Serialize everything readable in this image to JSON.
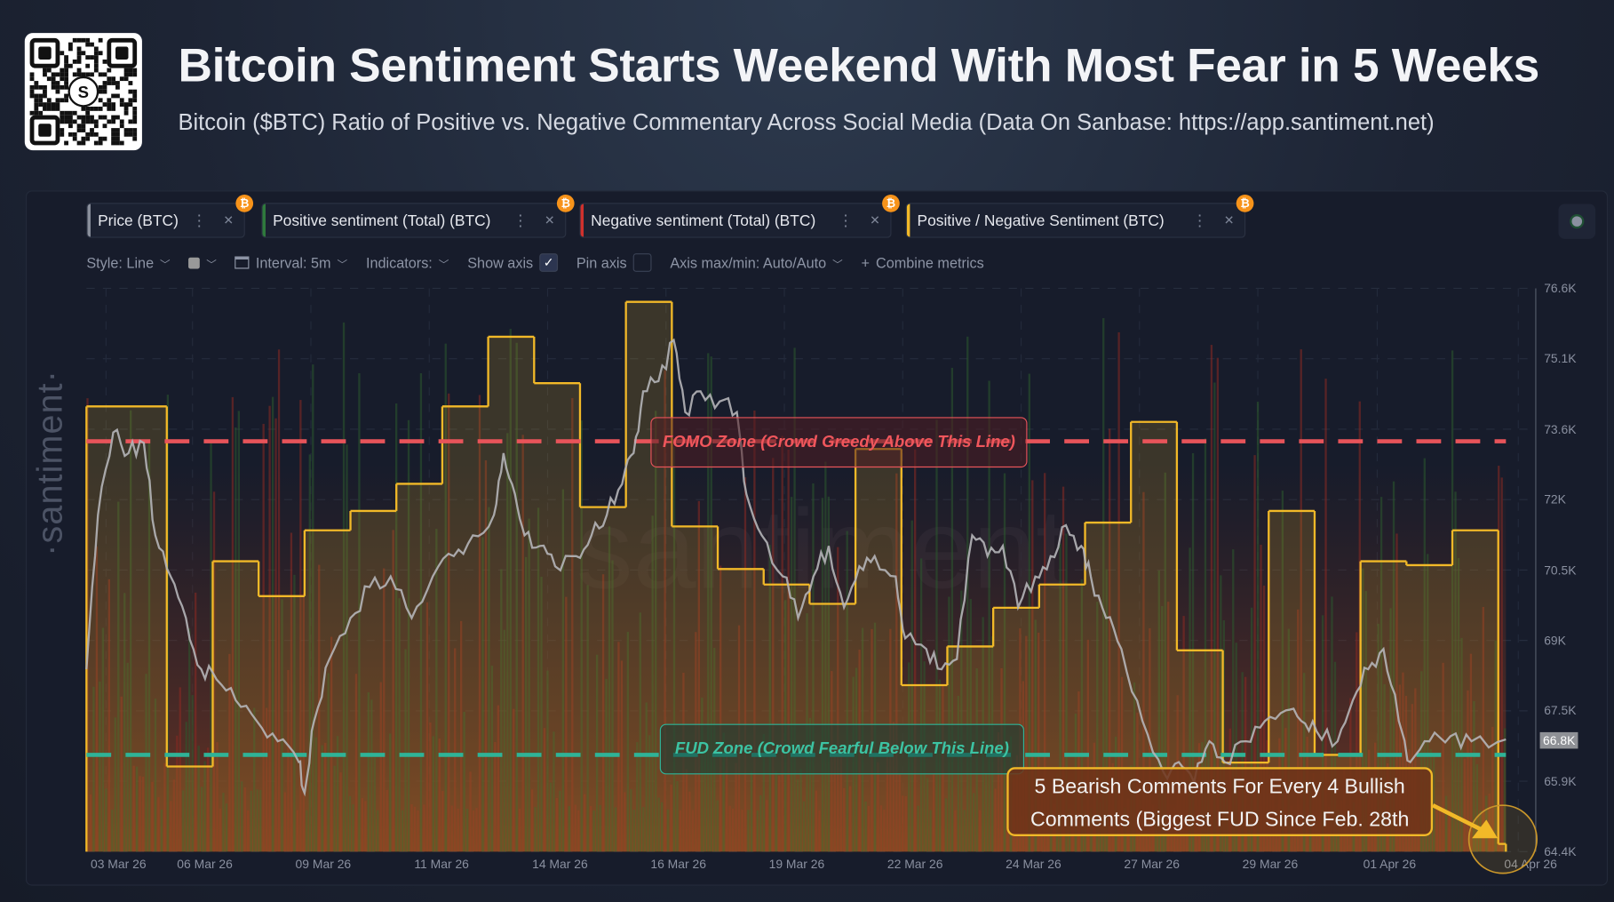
{
  "header": {
    "title": "Bitcoin Sentiment Starts Weekend With Most Fear in 5 Weeks",
    "subtitle": "Bitcoin ($BTC) Ratio of Positive vs. Negative Commentary Across Social Media (Data On Sanbase: https://app.santiment.net)",
    "qr_logo_text": "S"
  },
  "metric_tabs": [
    {
      "label": "Price (BTC)",
      "color": "#8a8f9c",
      "badge_icon": "bitcoin-icon"
    },
    {
      "label": "Positive sentiment (Total) (BTC)",
      "color": "#2f7a3d",
      "badge_icon": "bitcoin-icon"
    },
    {
      "label": "Negative sentiment (Total) (BTC)",
      "color": "#d0312d",
      "badge_icon": "bitcoin-icon"
    },
    {
      "label": "Positive / Negative Sentiment (BTC)",
      "color": "#f2b928",
      "badge_icon": "bitcoin-icon"
    }
  ],
  "toolbar": {
    "style": "Style: Line",
    "interval": "Interval: 5m",
    "indicators": "Indicators:",
    "show_axis": "Show axis",
    "show_axis_checked": true,
    "pin_axis": "Pin axis",
    "pin_axis_checked": false,
    "axis_minmax": "Axis max/min: Auto/Auto",
    "combine": "Combine metrics"
  },
  "watermark": {
    "left": "·santiment·",
    "center": "santiment"
  },
  "chart_data": {
    "type": "line",
    "y_axis": {
      "side": "right",
      "ticks": [
        "76.6K",
        "75.1K",
        "73.6K",
        "72K",
        "70.5K",
        "69K",
        "67.5K",
        "65.9K",
        "64.4K"
      ],
      "range": [
        64.4,
        76.6
      ],
      "last_value_label": "66.8K"
    },
    "x_axis": {
      "ticks": [
        "03 Mar 26",
        "06 Mar 26",
        "09 Mar 26",
        "11 Mar 26",
        "14 Mar 26",
        "16 Mar 26",
        "19 Mar 26",
        "22 Mar 26",
        "24 Mar 26",
        "27 Mar 26",
        "29 Mar 26",
        "01 Apr 26",
        "04 Apr 26"
      ],
      "range": [
        "2026-03-03T06:00",
        "2026-04-03T04:00"
      ]
    },
    "grid": true,
    "series": [
      {
        "name": "Price (BTC)",
        "color": "#b5b5b8",
        "type": "line",
        "unit": "K USD",
        "points": [
          [
            "2026-03-03T06:00",
            68.35
          ],
          [
            "2026-03-03T12:00",
            71.69
          ],
          [
            "2026-03-03T20:00",
            73.48
          ],
          [
            "2026-03-04T04:00",
            73.03
          ],
          [
            "2026-03-04T12:00",
            73.25
          ],
          [
            "2026-03-04T18:00",
            71.25
          ],
          [
            "2026-03-05T02:00",
            70.36
          ],
          [
            "2026-03-05T10:00",
            69.46
          ],
          [
            "2026-03-05T18:00",
            68.35
          ],
          [
            "2026-03-06T02:00",
            68.13
          ],
          [
            "2026-03-06T12:00",
            67.68
          ],
          [
            "2026-03-06T23:00",
            67.23
          ],
          [
            "2026-03-07T10:00",
            66.79
          ],
          [
            "2026-03-07T21:00",
            66.34
          ],
          [
            "2026-03-08T00:00",
            65.67
          ],
          [
            "2026-03-08T05:00",
            67.23
          ],
          [
            "2026-03-08T13:00",
            68.57
          ],
          [
            "2026-03-09T00:00",
            69.46
          ],
          [
            "2026-03-09T10:00",
            70.13
          ],
          [
            "2026-03-09T21:00",
            70.36
          ],
          [
            "2026-03-10T08:00",
            69.46
          ],
          [
            "2026-03-10T19:00",
            70.36
          ],
          [
            "2026-03-11T06:00",
            70.8
          ],
          [
            "2026-03-11T16:00",
            71.25
          ],
          [
            "2026-03-12T03:00",
            71.69
          ],
          [
            "2026-03-12T08:00",
            73.03
          ],
          [
            "2026-03-12T14:00",
            72.14
          ],
          [
            "2026-03-12T19:00",
            71.25
          ],
          [
            "2026-03-13T03:00",
            71.02
          ],
          [
            "2026-03-13T11:00",
            70.58
          ],
          [
            "2026-03-13T22:00",
            70.8
          ],
          [
            "2026-03-14T06:00",
            71.25
          ],
          [
            "2026-03-14T14:00",
            71.69
          ],
          [
            "2026-03-14T22:00",
            72.36
          ],
          [
            "2026-03-15T04:00",
            73.03
          ],
          [
            "2026-03-15T09:00",
            74.37
          ],
          [
            "2026-03-15T17:00",
            74.59
          ],
          [
            "2026-03-16T01:00",
            75.48
          ],
          [
            "2026-03-16T07:00",
            73.92
          ],
          [
            "2026-03-16T15:00",
            74.37
          ],
          [
            "2026-03-17T01:00",
            74.15
          ],
          [
            "2026-03-17T10:00",
            73.92
          ],
          [
            "2026-03-17T15:00",
            72.14
          ],
          [
            "2026-03-17T23:00",
            71.25
          ],
          [
            "2026-03-18T10:00",
            70.36
          ],
          [
            "2026-03-18T18:00",
            69.46
          ],
          [
            "2026-03-19T02:00",
            70.36
          ],
          [
            "2026-03-19T10:00",
            71.02
          ],
          [
            "2026-03-19T18:00",
            69.69
          ],
          [
            "2026-03-20T02:00",
            70.58
          ],
          [
            "2026-03-20T10:00",
            70.8
          ],
          [
            "2026-03-20T21:00",
            70.36
          ],
          [
            "2026-03-21T02:00",
            69.02
          ],
          [
            "2026-03-21T13:00",
            68.79
          ],
          [
            "2026-03-21T21:00",
            68.35
          ],
          [
            "2026-03-22T05:00",
            68.57
          ],
          [
            "2026-03-22T13:00",
            71.25
          ],
          [
            "2026-03-22T21:00",
            70.8
          ],
          [
            "2026-03-23T05:00",
            71.02
          ],
          [
            "2026-03-23T13:00",
            69.69
          ],
          [
            "2026-03-23T22:00",
            70.36
          ],
          [
            "2026-03-24T06:00",
            70.8
          ],
          [
            "2026-03-24T14:00",
            71.47
          ],
          [
            "2026-03-24T22:00",
            71.02
          ],
          [
            "2026-03-25T03:00",
            70.36
          ],
          [
            "2026-03-25T11:00",
            69.46
          ],
          [
            "2026-03-25T19:00",
            68.79
          ],
          [
            "2026-03-26T06:00",
            67.23
          ],
          [
            "2026-03-26T17:00",
            66.12
          ],
          [
            "2026-03-27T01:00",
            66.34
          ],
          [
            "2026-03-27T09:00",
            65.9
          ],
          [
            "2026-03-27T17:00",
            66.79
          ],
          [
            "2026-03-28T01:00",
            66.34
          ],
          [
            "2026-03-28T12:00",
            66.79
          ],
          [
            "2026-03-28T22:00",
            67.23
          ],
          [
            "2026-03-29T09:00",
            67.46
          ],
          [
            "2026-03-29T17:00",
            67.23
          ],
          [
            "2026-03-30T01:00",
            67.01
          ],
          [
            "2026-03-30T12:00",
            66.79
          ],
          [
            "2026-03-30T20:00",
            67.68
          ],
          [
            "2026-03-31T04:00",
            68.35
          ],
          [
            "2026-03-31T12:00",
            68.79
          ],
          [
            "2026-03-31T20:00",
            67.23
          ],
          [
            "2026-04-01T02:00",
            66.34
          ],
          [
            "2026-04-01T12:00",
            66.79
          ],
          [
            "2026-04-01T23:00",
            66.9
          ],
          [
            "2026-04-02T10:00",
            66.79
          ],
          [
            "2026-04-03T04:00",
            66.83
          ]
        ]
      },
      {
        "name": "Positive / Negative Sentiment (BTC)",
        "color": "#f2b928",
        "type": "step",
        "range": [
          0.78,
          2.235
        ],
        "points": [
          [
            "2026-03-03T06:00",
            1.93
          ],
          [
            "2026-03-05",
            1.0
          ],
          [
            "2026-03-06",
            1.53
          ],
          [
            "2026-03-07",
            1.44
          ],
          [
            "2026-03-08",
            1.61
          ],
          [
            "2026-03-09",
            1.66
          ],
          [
            "2026-03-10",
            1.73
          ],
          [
            "2026-03-11",
            1.93
          ],
          [
            "2026-03-12",
            2.11
          ],
          [
            "2026-03-13",
            1.99
          ],
          [
            "2026-03-14",
            1.67
          ],
          [
            "2026-03-15",
            2.2
          ],
          [
            "2026-03-16",
            1.62
          ],
          [
            "2026-03-17",
            1.51
          ],
          [
            "2026-03-18",
            1.47
          ],
          [
            "2026-03-19",
            1.42
          ],
          [
            "2026-03-20",
            1.82
          ],
          [
            "2026-03-21",
            1.21
          ],
          [
            "2026-03-22",
            1.31
          ],
          [
            "2026-03-23",
            1.41
          ],
          [
            "2026-03-24",
            1.47
          ],
          [
            "2026-03-25",
            1.63
          ],
          [
            "2026-03-26",
            1.89
          ],
          [
            "2026-03-27",
            1.3
          ],
          [
            "2026-03-28",
            1.01
          ],
          [
            "2026-03-29",
            1.66
          ],
          [
            "2026-03-30",
            1.03
          ],
          [
            "2026-03-31",
            1.53
          ],
          [
            "2026-04-01",
            1.52
          ],
          [
            "2026-04-02",
            1.61
          ],
          [
            "2026-04-03",
            0.8
          ]
        ]
      },
      {
        "name": "Positive sentiment (Total) (BTC)",
        "color": "#2f7a3d",
        "type": "bar"
      },
      {
        "name": "Negative sentiment (Total) (BTC)",
        "color": "#d0312d",
        "type": "bar"
      }
    ],
    "reference_lines": [
      {
        "label": "FOMO Zone (Crowd Greedy Above This Line)",
        "ratio": 1.84,
        "color": "#e8545a"
      },
      {
        "label": "FUD Zone (Crowd Fearful Below This Line)",
        "ratio": 1.03,
        "color": "#2fb397"
      }
    ],
    "annotation": {
      "line1": "5 Bearish Comments For Every 4 Bullish",
      "line2": "Comments (Biggest FUD Since Feb. 28th",
      "color": "#f2b928"
    }
  }
}
